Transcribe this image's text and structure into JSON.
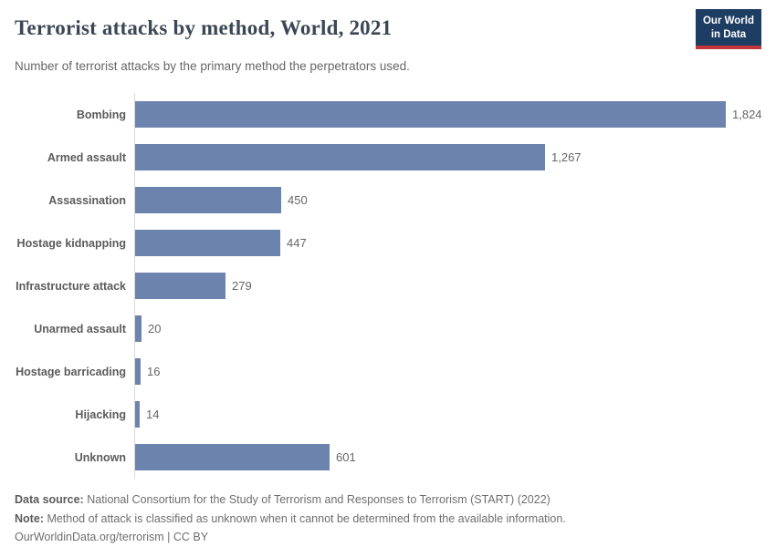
{
  "header": {
    "title": "Terrorist attacks by method, World, 2021",
    "subtitle": "Number of terrorist attacks by the primary method the perpetrators used.",
    "logo": {
      "line1": "Our World",
      "line2": "in Data"
    }
  },
  "chart_data": {
    "type": "bar",
    "orientation": "horizontal",
    "title": "Terrorist attacks by method, World, 2021",
    "xlabel": "",
    "ylabel": "",
    "grid": false,
    "xlim": [
      0,
      1824
    ],
    "categories": [
      "Bombing",
      "Armed assault",
      "Assassination",
      "Hostage kidnapping",
      "Infrastructure attack",
      "Unarmed assault",
      "Hostage barricading",
      "Hijacking",
      "Unknown"
    ],
    "values": [
      1824,
      1267,
      450,
      447,
      279,
      20,
      16,
      14,
      601
    ],
    "value_labels": [
      "1,824",
      "1,267",
      "450",
      "447",
      "279",
      "20",
      "16",
      "14",
      "601"
    ]
  },
  "footer": {
    "data_source_label": "Data source:",
    "data_source_text": "National Consortium for the Study of Terrorism and Responses to Terrorism (START) (2022)",
    "note_label": "Note:",
    "note_text": "Method of attack is classified as unknown when it cannot be determined from the available information.",
    "license": "OurWorldinData.org/terrorism | CC BY"
  },
  "colors": {
    "bar": "#6c83ad",
    "axis_line": "#d9d9d9",
    "logo_navy": "#1d3d63",
    "logo_red": "#c1353b",
    "title_text": "#3b4754",
    "muted_text": "#666666"
  }
}
